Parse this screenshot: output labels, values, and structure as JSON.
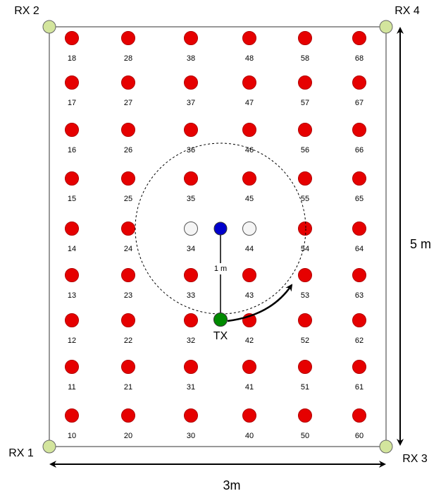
{
  "receivers": {
    "top_left": "RX 2",
    "top_right": "RX 4",
    "bottom_left": "RX 1",
    "bottom_right": "RX 3"
  },
  "grid_labels": [
    [
      "18",
      "28",
      "38",
      "48",
      "58",
      "68"
    ],
    [
      "17",
      "27",
      "37",
      "47",
      "57",
      "67"
    ],
    [
      "16",
      "26",
      "36",
      "46",
      "56",
      "66"
    ],
    [
      "15",
      "25",
      "35",
      "45",
      "55",
      "65"
    ],
    [
      "14",
      "24",
      "34",
      "44",
      "54",
      "64"
    ],
    [
      "13",
      "23",
      "33",
      "43",
      "53",
      "63"
    ],
    [
      "12",
      "22",
      "32",
      "42",
      "52",
      "62"
    ],
    [
      "11",
      "21",
      "31",
      "41",
      "51",
      "61"
    ],
    [
      "10",
      "20",
      "30",
      "40",
      "50",
      "60"
    ]
  ],
  "transmitter": "TX",
  "radius_label": "1 m",
  "height_label": "5 m",
  "width_label": "3m"
}
